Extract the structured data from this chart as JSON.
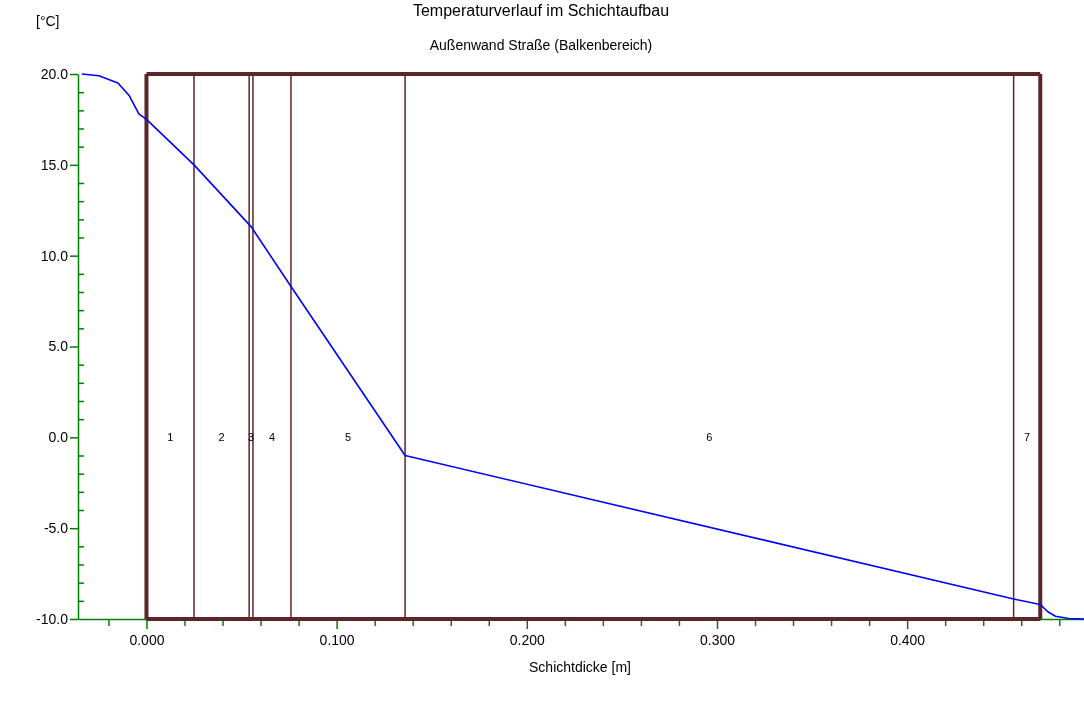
{
  "chart_data": {
    "type": "line",
    "title": "Temperaturverlauf im Schichtaufbau",
    "subtitle": "Außenwand Straße (Balkenbereich)",
    "xlabel": "Schichtdicke [m]",
    "ylabel": "[°C]",
    "x": [
      -0.034,
      -0.025,
      -0.015,
      -0.009,
      -0.004,
      0,
      0.025,
      0.055,
      0.076,
      0.136,
      0.456,
      0.47,
      0.474,
      0.478,
      0.485,
      0.493
    ],
    "series": [
      {
        "color": "#0000ff",
        "values": [
          20,
          19.9,
          19.5,
          18.8,
          17.8,
          17.5,
          15.0,
          11.6,
          8.3,
          -1.0,
          -8.9,
          -9.2,
          -9.6,
          -9.85,
          -9.97,
          -10
        ]
      }
    ],
    "xlim": [
      -0.036,
      0.493
    ],
    "ylim": [
      -10,
      20
    ],
    "xticks": [
      {
        "value": -0.02,
        "label": null
      },
      {
        "value": 0,
        "label": "0.000"
      },
      {
        "value": 0.02,
        "label": null
      },
      {
        "value": 0.04,
        "label": null
      },
      {
        "value": 0.06,
        "label": null
      },
      {
        "value": 0.08,
        "label": null
      },
      {
        "value": 0.1,
        "label": "0.100"
      },
      {
        "value": 0.12,
        "label": null
      },
      {
        "value": 0.14,
        "label": null
      },
      {
        "value": 0.16,
        "label": null
      },
      {
        "value": 0.18,
        "label": null
      },
      {
        "value": 0.2,
        "label": "0.200"
      },
      {
        "value": 0.22,
        "label": null
      },
      {
        "value": 0.24,
        "label": null
      },
      {
        "value": 0.26,
        "label": null
      },
      {
        "value": 0.28,
        "label": null
      },
      {
        "value": 0.3,
        "label": "0.300"
      },
      {
        "value": 0.32,
        "label": null
      },
      {
        "value": 0.34,
        "label": null
      },
      {
        "value": 0.36,
        "label": null
      },
      {
        "value": 0.38,
        "label": null
      },
      {
        "value": 0.4,
        "label": "0.400"
      },
      {
        "value": 0.42,
        "label": null
      },
      {
        "value": 0.44,
        "label": null
      },
      {
        "value": 0.46,
        "label": null
      },
      {
        "value": 0.48,
        "label": null
      }
    ],
    "yticks": [
      {
        "value": -10,
        "label": "-10.0"
      },
      {
        "value": -9,
        "label": null
      },
      {
        "value": -8,
        "label": null
      },
      {
        "value": -7,
        "label": null
      },
      {
        "value": -6,
        "label": null
      },
      {
        "value": -5,
        "label": "-5.0"
      },
      {
        "value": -4,
        "label": null
      },
      {
        "value": -3,
        "label": null
      },
      {
        "value": -2,
        "label": null
      },
      {
        "value": -1,
        "label": null
      },
      {
        "value": 0,
        "label": "0.0"
      },
      {
        "value": 1,
        "label": null
      },
      {
        "value": 2,
        "label": null
      },
      {
        "value": 3,
        "label": null
      },
      {
        "value": 4,
        "label": null
      },
      {
        "value": 5,
        "label": "5.0"
      },
      {
        "value": 6,
        "label": null
      },
      {
        "value": 7,
        "label": null
      },
      {
        "value": 8,
        "label": null
      },
      {
        "value": 9,
        "label": null
      },
      {
        "value": 10,
        "label": "10.0"
      },
      {
        "value": 11,
        "label": null
      },
      {
        "value": 12,
        "label": null
      },
      {
        "value": 13,
        "label": null
      },
      {
        "value": 14,
        "label": null
      },
      {
        "value": 15,
        "label": "15.0"
      },
      {
        "value": 16,
        "label": null
      },
      {
        "value": 17,
        "label": null
      },
      {
        "value": 18,
        "label": null
      },
      {
        "value": 19,
        "label": null
      },
      {
        "value": 20,
        "label": "20.0"
      }
    ],
    "ref_lines": [
      {
        "axis": "x",
        "value": 0,
        "color": "#5c2626"
      },
      {
        "axis": "x",
        "value": 0.025,
        "color": "#5c2626"
      },
      {
        "axis": "x",
        "value": 0.054,
        "color": "#5c2626"
      },
      {
        "axis": "x",
        "value": 0.056,
        "color": "#5c2626"
      },
      {
        "axis": "x",
        "value": 0.076,
        "color": "#5c2626"
      },
      {
        "axis": "x",
        "value": 0.136,
        "color": "#5c2626"
      },
      {
        "axis": "x",
        "value": 0.456,
        "color": "#5c2626"
      },
      {
        "axis": "x",
        "value": 0.47,
        "color": "#5c2626"
      }
    ],
    "annotations": [
      "1",
      "2",
      "3",
      "4",
      "5",
      "6",
      "7"
    ],
    "marker": "none",
    "line_style": "solid"
  }
}
